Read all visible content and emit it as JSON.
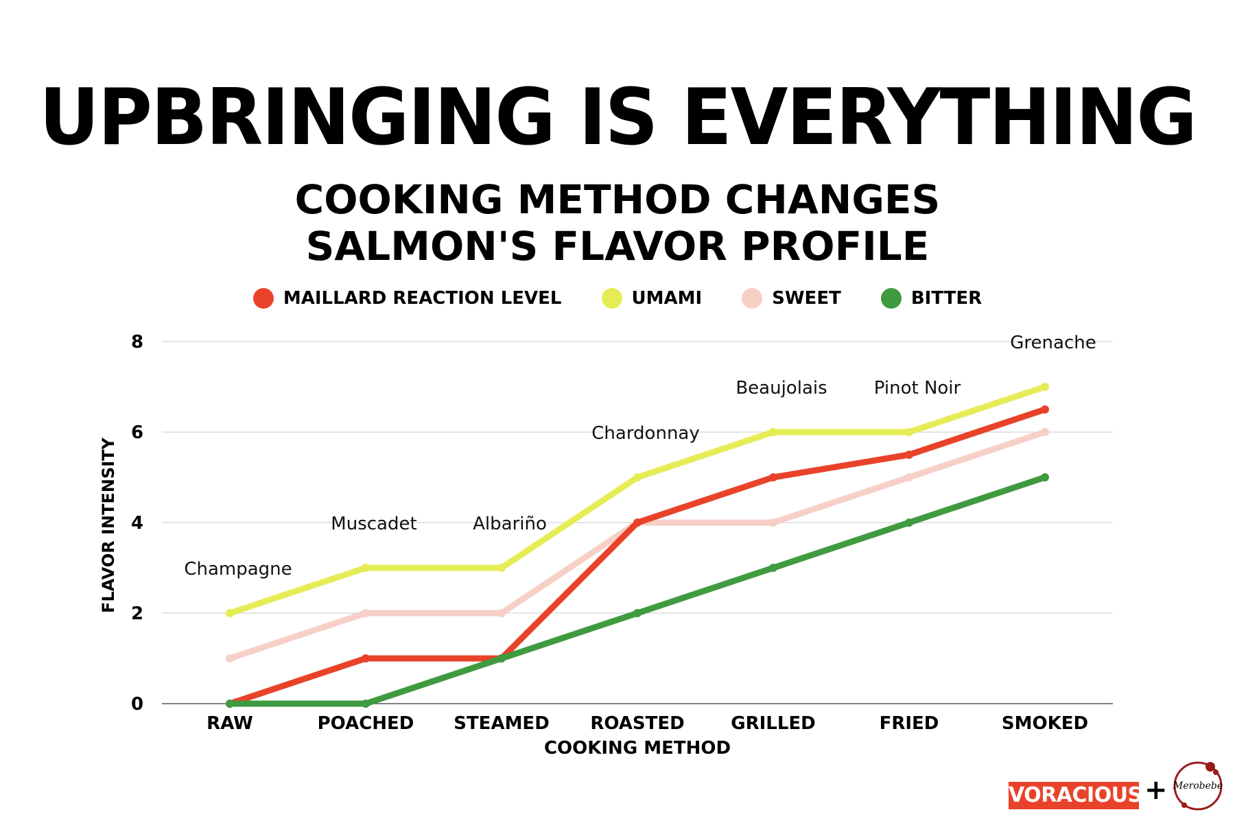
{
  "header": {
    "title": "UPBRINGING IS EVERYTHING",
    "subtitle_line1": "COOKING METHOD CHANGES",
    "subtitle_line2": "SALMON'S FLAVOR PROFILE"
  },
  "footer": {
    "brand_badge": "VORACIOUS",
    "plus": "+",
    "partner_logo_text": "Merobebe"
  },
  "chart_data": {
    "type": "line",
    "xlabel": "COOKING METHOD",
    "ylabel": "FLAVOR INTENSITY",
    "categories": [
      "RAW",
      "POACHED",
      "STEAMED",
      "ROASTED",
      "GRILLED",
      "FRIED",
      "SMOKED"
    ],
    "ylim": [
      0,
      8
    ],
    "yticks": [
      "0",
      "2",
      "4",
      "6",
      "8"
    ],
    "grid": true,
    "legend_position": "top",
    "series": [
      {
        "name": "MAILLARD REACTION LEVEL",
        "color": "#e8432a",
        "values": [
          0,
          1,
          1,
          4,
          5,
          5.5,
          6.5
        ]
      },
      {
        "name": "UMAMI",
        "color": "#e6ec55",
        "values": [
          2,
          3,
          3,
          5,
          6,
          6,
          7
        ]
      },
      {
        "name": "SWEET",
        "color": "#f6cfc6",
        "values": [
          1,
          2,
          2,
          4,
          4,
          5,
          6
        ]
      },
      {
        "name": "BITTER",
        "color": "#3f9a40",
        "values": [
          0,
          0,
          1,
          2,
          3,
          4,
          5
        ]
      }
    ],
    "annotations": [
      "Champagne",
      "Muscadet",
      "Albariño",
      "Chardonnay",
      "Beaujolais",
      "Pinot Noir",
      "Grenache"
    ]
  }
}
